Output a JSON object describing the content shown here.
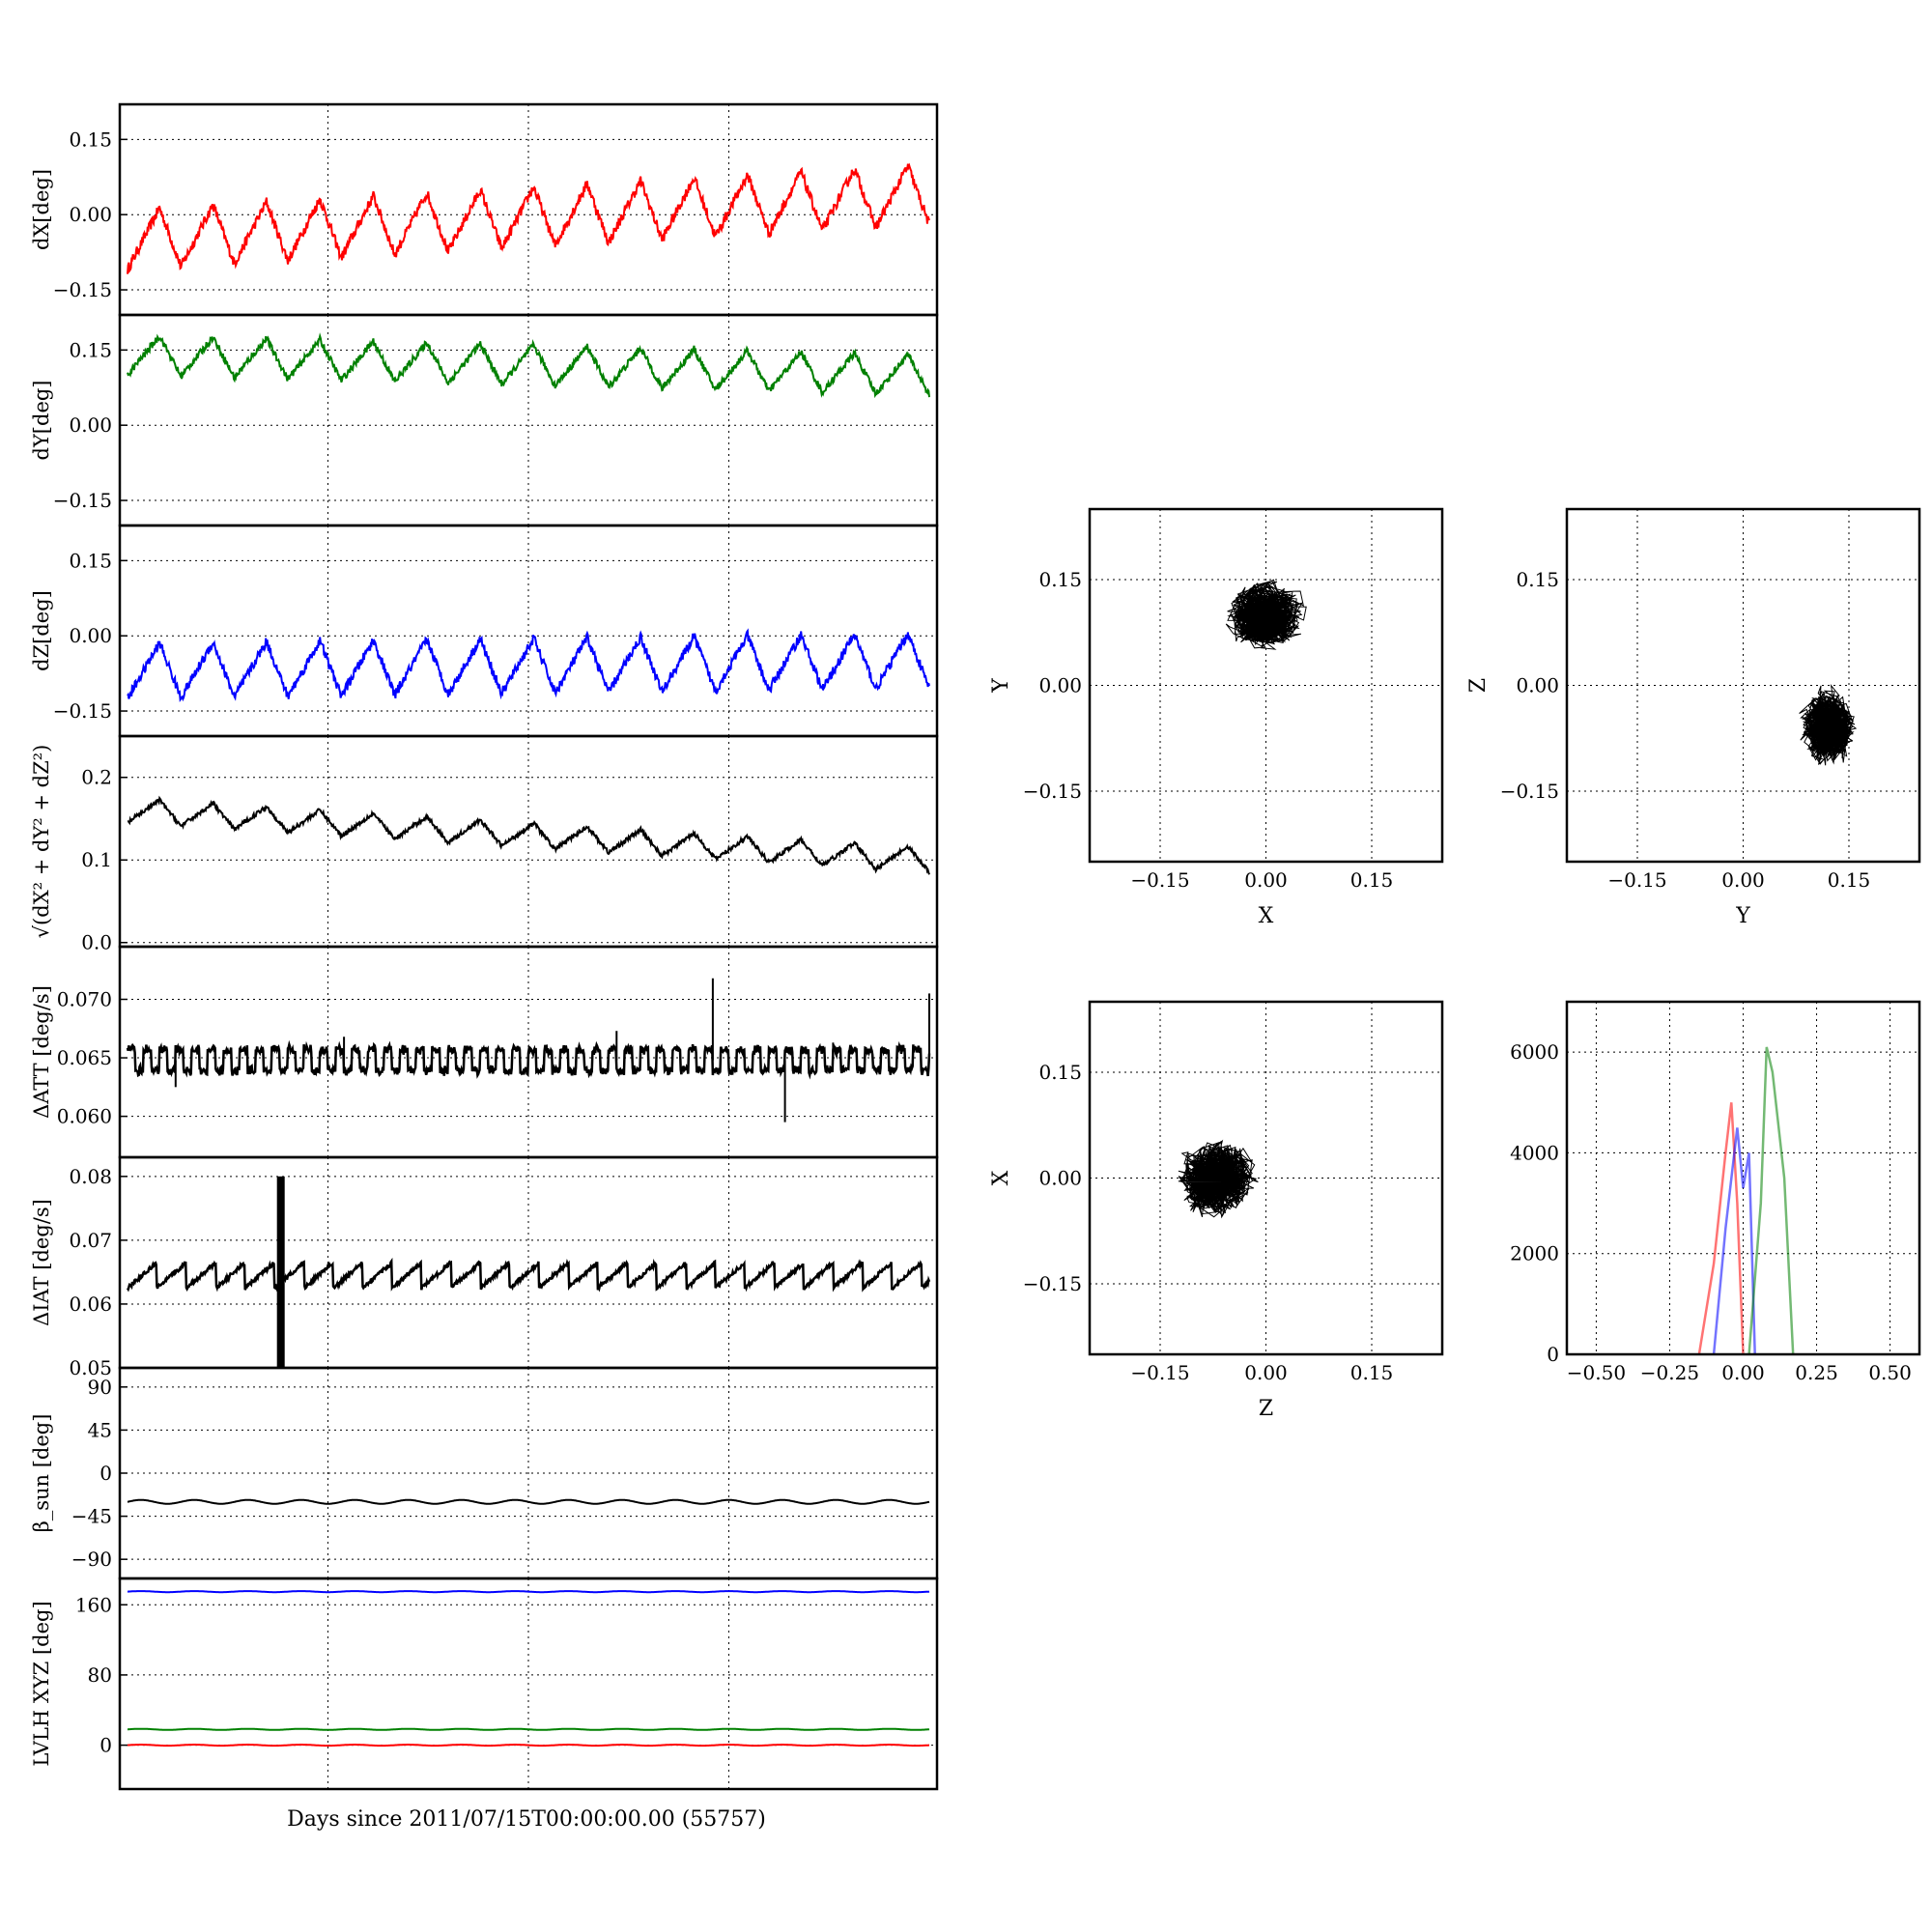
{
  "figure": {
    "xlabel": "Days since 2011/07/15T00:00:00.00 (55757)",
    "ticks_sym": [
      "−0.15",
      "0.00",
      "0.15"
    ],
    "hist_xticks": [
      "−0.50",
      "−0.25",
      "0.00",
      "0.25",
      "0.50"
    ],
    "hist_yticks": [
      "0",
      "2000",
      "4000",
      "6000"
    ]
  },
  "colors": {
    "x": "#ff0000",
    "y": "#008000",
    "z": "#0000ff",
    "k": "#000000"
  },
  "chart_data": [
    {
      "id": "dX",
      "type": "line",
      "ylabel": "dX[deg]",
      "color": "#ff0000",
      "xlim": [
        0,
        15
      ],
      "ylim": [
        -0.2,
        0.22
      ],
      "yticks": [
        "0.15",
        "0.00",
        "−0.15"
      ],
      "series": [
        {
          "x": [
            0,
            15
          ],
          "values": [
            -0.05,
            0.04
          ],
          "osc_amp": 0.06,
          "osc_period": 1.0
        }
      ]
    },
    {
      "id": "dY",
      "type": "line",
      "ylabel": "dY[deg]",
      "color": "#008000",
      "xlim": [
        0,
        15
      ],
      "ylim": [
        -0.2,
        0.22
      ],
      "yticks": [
        "0.15",
        "0.00",
        "−0.15"
      ],
      "series": [
        {
          "x": [
            0,
            15
          ],
          "values": [
            0.14,
            0.1
          ],
          "osc_amp": 0.04,
          "osc_period": 1.0
        }
      ]
    },
    {
      "id": "dZ",
      "type": "line",
      "ylabel": "dZ[deg]",
      "color": "#0000ff",
      "xlim": [
        0,
        15
      ],
      "ylim": [
        -0.2,
        0.22
      ],
      "yticks": [
        "0.15",
        "0.00",
        "−0.15"
      ],
      "series": [
        {
          "x": [
            0,
            15
          ],
          "values": [
            -0.07,
            -0.05
          ],
          "osc_amp": 0.055,
          "osc_period": 1.0
        }
      ]
    },
    {
      "id": "dR",
      "type": "line",
      "ylabel": "√(dX² + dY² + dZ²)",
      "color": "#000000",
      "xlim": [
        0,
        15
      ],
      "ylim": [
        -0.005,
        0.25
      ],
      "yticks": [
        "0.2",
        "0.1",
        "0.0"
      ],
      "series": [
        {
          "x": [
            0,
            15
          ],
          "values": [
            0.16,
            0.1
          ],
          "osc_amp": 0.015,
          "osc_period": 1.0
        }
      ]
    },
    {
      "id": "dATT",
      "type": "line",
      "ylabel": "ΔATT [deg/s]",
      "color": "#000000",
      "xlim": [
        0,
        15
      ],
      "ylim": [
        0.0565,
        0.0745
      ],
      "yticks": [
        "0.070",
        "0.065",
        "0.060"
      ],
      "series": [
        {
          "x": [
            0,
            15
          ],
          "values": [
            0.0648,
            0.0648
          ],
          "osc_amp": 0.0012,
          "osc_period": 0.3
        }
      ]
    },
    {
      "id": "dIAT",
      "type": "line",
      "ylabel": "ΔIAT [deg/s]",
      "color": "#000000",
      "xlim": [
        0,
        15
      ],
      "ylim": [
        0.05,
        0.083
      ],
      "yticks": [
        "0.08",
        "0.07",
        "0.06",
        "0.05"
      ],
      "series": [
        {
          "x": [
            0,
            15
          ],
          "values": [
            0.0645,
            0.0645
          ],
          "osc_amp": 0.002,
          "osc_period": 0.55
        }
      ]
    },
    {
      "id": "beta",
      "type": "line",
      "ylabel": "β_sun [deg]",
      "color": "#000000",
      "xlim": [
        0,
        15
      ],
      "ylim": [
        -110,
        110
      ],
      "yticks": [
        "90",
        "45",
        "0",
        "−45",
        "−90"
      ],
      "series": [
        {
          "x": [
            0,
            15
          ],
          "values": [
            -30,
            -30
          ],
          "osc_amp": 2,
          "osc_period": 1.0
        }
      ]
    },
    {
      "id": "lvlh",
      "type": "line",
      "ylabel": "LVLH XYZ [deg]",
      "color": "#000000",
      "xlim": [
        0,
        15
      ],
      "ylim": [
        -50,
        190
      ],
      "yticks": [
        "160",
        "80",
        "0"
      ],
      "series": [
        {
          "color": "#0000ff",
          "x": [
            0,
            15
          ],
          "values": [
            175,
            175
          ]
        },
        {
          "color": "#008000",
          "x": [
            0,
            15
          ],
          "values": [
            18,
            18
          ]
        },
        {
          "color": "#ff0000",
          "x": [
            0,
            15
          ],
          "values": [
            0,
            0
          ]
        }
      ]
    },
    {
      "id": "scatter_xy",
      "type": "scatter",
      "xlabel": "X",
      "ylabel": "Y",
      "xlim": [
        -0.25,
        0.25
      ],
      "ylim": [
        -0.25,
        0.25
      ],
      "center": [
        0.0,
        0.1
      ],
      "spread": [
        0.07,
        0.06
      ]
    },
    {
      "id": "scatter_yz",
      "type": "scatter",
      "xlabel": "Y",
      "ylabel": "Z",
      "xlim": [
        -0.25,
        0.25
      ],
      "ylim": [
        -0.25,
        0.25
      ],
      "center": [
        0.12,
        -0.06
      ],
      "spread": [
        0.05,
        0.07
      ]
    },
    {
      "id": "scatter_zx",
      "type": "scatter",
      "xlabel": "Z",
      "ylabel": "X",
      "xlim": [
        -0.25,
        0.25
      ],
      "ylim": [
        -0.25,
        0.25
      ],
      "center": [
        -0.07,
        0.0
      ],
      "spread": [
        0.07,
        0.07
      ]
    },
    {
      "id": "hist",
      "type": "line",
      "xlim": [
        -0.6,
        0.6
      ],
      "ylim": [
        0,
        7000
      ],
      "series": [
        {
          "color": "#ff0000",
          "x": [
            -0.15,
            -0.1,
            -0.06,
            -0.04,
            -0.02,
            0.0
          ],
          "values": [
            0,
            1800,
            4000,
            5000,
            3000,
            0
          ]
        },
        {
          "color": "#0000ff",
          "x": [
            -0.1,
            -0.06,
            -0.02,
            0.0,
            0.02,
            0.04
          ],
          "values": [
            0,
            2500,
            4500,
            3300,
            4000,
            0
          ]
        },
        {
          "color": "#008000",
          "x": [
            0.02,
            0.06,
            0.08,
            0.1,
            0.14,
            0.17
          ],
          "values": [
            0,
            3000,
            6100,
            5600,
            3500,
            0
          ]
        }
      ]
    }
  ]
}
